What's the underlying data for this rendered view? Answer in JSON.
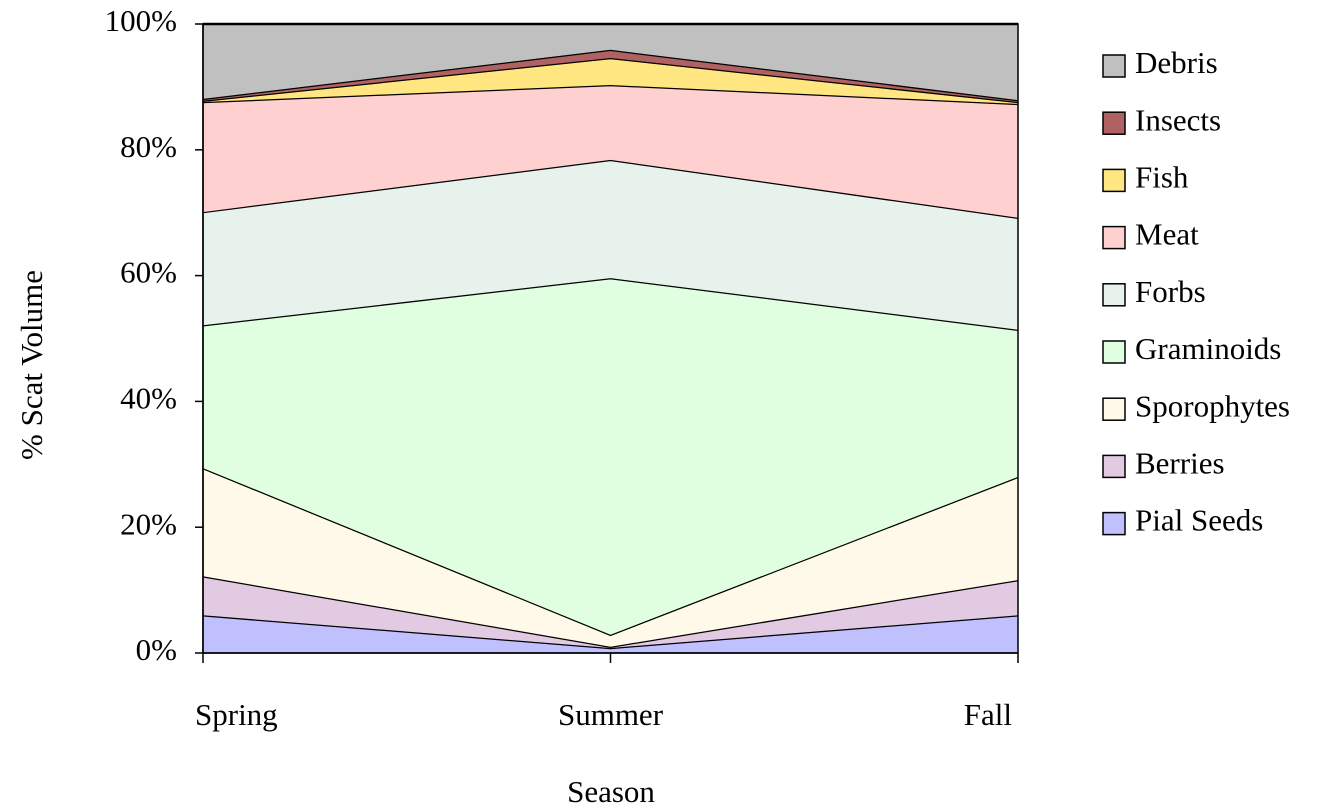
{
  "chart_data": {
    "type": "stacked-area",
    "x_label": "Season",
    "y_label": "% Scat Volume",
    "categories": [
      "Spring",
      "Summer",
      "Fall"
    ],
    "series": [
      {
        "name": "Pial Seeds",
        "color": "#c0c0ff",
        "values": [
          6.0,
          0.8,
          6.0
        ]
      },
      {
        "name": "Berries",
        "color": "#e2cbe2",
        "values": [
          6.2,
          0.2,
          5.6
        ]
      },
      {
        "name": "Sporophytes",
        "color": "#fff9ea",
        "values": [
          17.2,
          1.9,
          16.4
        ]
      },
      {
        "name": "Graminoids",
        "color": "#e0ffe0",
        "values": [
          22.7,
          56.7,
          23.4
        ]
      },
      {
        "name": "Forbs",
        "color": "#e8f2ec",
        "values": [
          18.0,
          18.8,
          17.8
        ]
      },
      {
        "name": "Meat",
        "color": "#ffd0d0",
        "values": [
          17.5,
          11.9,
          18.1
        ]
      },
      {
        "name": "Fish",
        "color": "#ffe680",
        "values": [
          0.2,
          4.3,
          0.3
        ]
      },
      {
        "name": "Insects",
        "color": "#b06262",
        "values": [
          0.3,
          1.3,
          0.3
        ]
      },
      {
        "name": "Debris",
        "color": "#c0c0c0",
        "values": [
          11.9,
          4.1,
          12.1
        ]
      }
    ],
    "ylim": [
      0,
      100
    ],
    "yticks": [
      {
        "value": 0,
        "label": "0%"
      },
      {
        "value": 20,
        "label": "20%"
      },
      {
        "value": 40,
        "label": "40%"
      },
      {
        "value": 60,
        "label": "60%"
      },
      {
        "value": 80,
        "label": "80%"
      },
      {
        "value": 100,
        "label": "100%"
      }
    ],
    "legend": "right"
  }
}
